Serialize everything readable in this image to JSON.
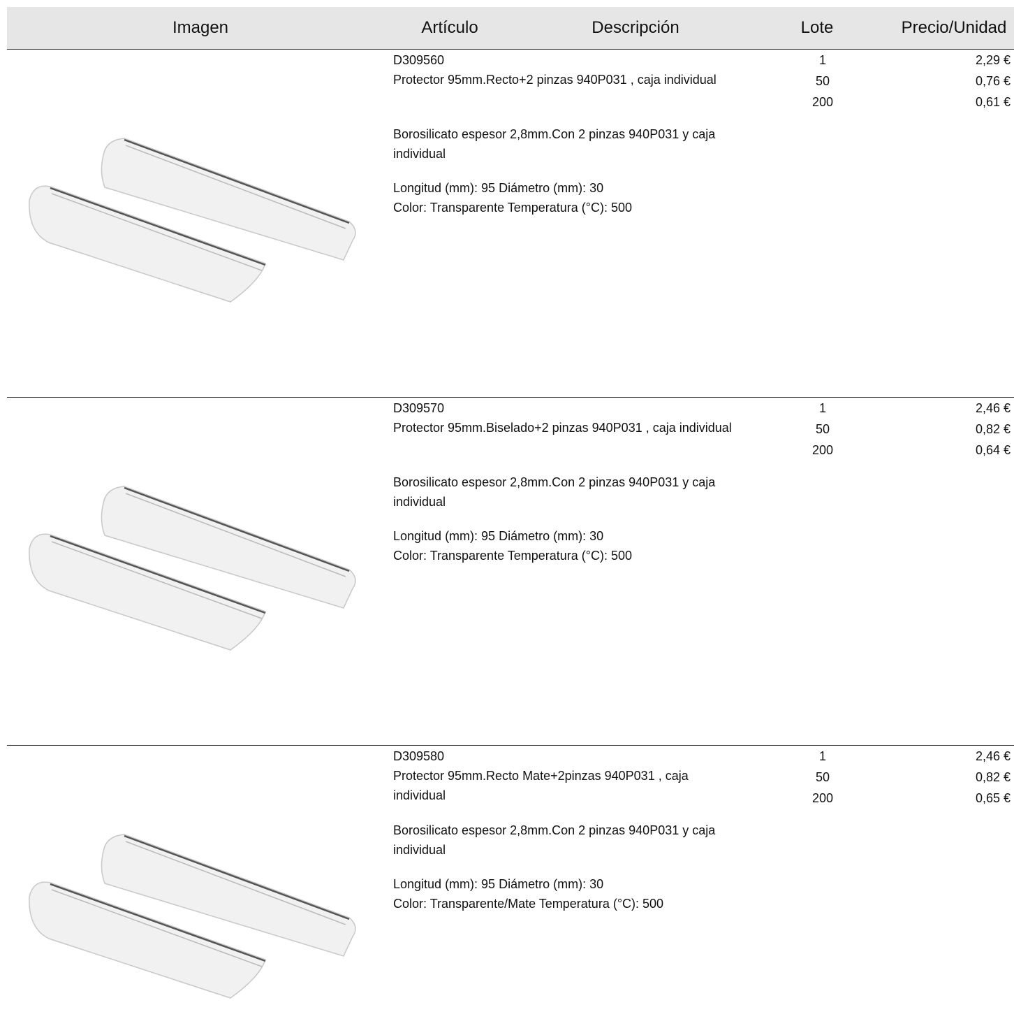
{
  "header": {
    "columns": [
      "Imagen",
      "Artículo",
      "Descripción",
      "Lote",
      "Precio/Unidad"
    ]
  },
  "rows": [
    {
      "article": "D309560",
      "name": "Protector 95mm.Recto+2 pinzas 940P031 , caja individual",
      "description": "Borosilicato espesor 2,8mm.Con 2 pinzas 940P031 y caja individual",
      "specs": [
        "Longitud (mm): 95 Diámetro (mm): 30",
        "Color: Transparente Temperatura (°C): 500"
      ],
      "lots": [
        1,
        50,
        200
      ],
      "prices": [
        "2,29 €",
        "0,76 €",
        "0,61 €"
      ]
    },
    {
      "article": "D309570",
      "name": "Protector 95mm.Biselado+2 pinzas 940P031 , caja individual",
      "description": "Borosilicato espesor 2,8mm.Con 2 pinzas 940P031 y caja individual",
      "specs": [
        "Longitud (mm): 95 Diámetro (mm): 30",
        "Color: Transparente Temperatura (°C): 500"
      ],
      "lots": [
        1,
        50,
        200
      ],
      "prices": [
        "2,46 €",
        "0,82 €",
        "0,64 €"
      ]
    },
    {
      "article": "D309580",
      "name": "Protector 95mm.Recto Mate+2pinzas 940P031 , caja individual",
      "description": "Borosilicato espesor 2,8mm.Con 2 pinzas 940P031 y caja individual",
      "specs": [
        "Longitud (mm): 95 Diámetro (mm): 30",
        "Color: Transparente/Mate Temperatura (°C): 500"
      ],
      "lots": [
        1,
        50,
        200
      ],
      "prices": [
        "2,46 €",
        "0,82 €",
        "0,65 €"
      ]
    }
  ]
}
